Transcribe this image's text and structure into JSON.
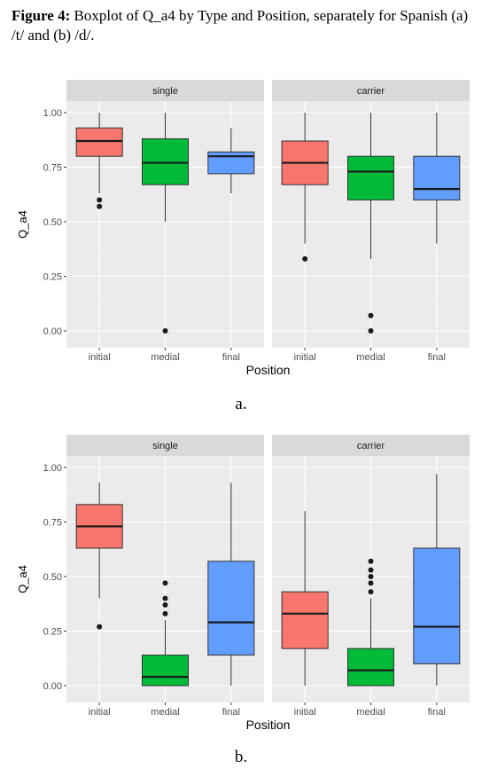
{
  "caption": {
    "label": "Figure 4:",
    "text": " Boxplot of Q_a4 by Type and Position, separately for Spanish (a) /t/ and (b) /d/."
  },
  "sublabels": [
    "a.",
    "b."
  ],
  "colors": {
    "initial": "#f8766d",
    "medial": "#00ba38",
    "final": "#619cff",
    "panel_bg": "#ebebeb",
    "strip_bg": "#d9d9d9",
    "grid_major": "#ffffff"
  },
  "chart_data": [
    {
      "type": "boxplot",
      "id": "a",
      "xlabel": "Position",
      "ylabel": "Q_a4",
      "ylim": [
        0,
        1
      ],
      "yticks": [
        "0.00",
        "0.25",
        "0.50",
        "0.75",
        "1.00"
      ],
      "categories": [
        "initial",
        "medial",
        "final"
      ],
      "legend": "none",
      "grid": true,
      "facets": [
        {
          "name": "single",
          "boxes": [
            {
              "category": "initial",
              "min": 0.63,
              "q1": 0.8,
              "median": 0.87,
              "q3": 0.93,
              "max": 1.0,
              "outliers": [
                0.6,
                0.57
              ]
            },
            {
              "category": "medial",
              "min": 0.5,
              "q1": 0.67,
              "median": 0.77,
              "q3": 0.88,
              "max": 1.0,
              "outliers": [
                0.0
              ]
            },
            {
              "category": "final",
              "min": 0.63,
              "q1": 0.72,
              "median": 0.8,
              "q3": 0.82,
              "max": 0.93,
              "outliers": []
            }
          ]
        },
        {
          "name": "carrier",
          "boxes": [
            {
              "category": "initial",
              "min": 0.4,
              "q1": 0.67,
              "median": 0.77,
              "q3": 0.87,
              "max": 1.0,
              "outliers": [
                0.33
              ]
            },
            {
              "category": "medial",
              "min": 0.33,
              "q1": 0.6,
              "median": 0.73,
              "q3": 0.8,
              "max": 1.0,
              "outliers": [
                0.07,
                0.0
              ]
            },
            {
              "category": "final",
              "min": 0.4,
              "q1": 0.6,
              "median": 0.65,
              "q3": 0.8,
              "max": 1.0,
              "outliers": []
            }
          ]
        }
      ]
    },
    {
      "type": "boxplot",
      "id": "b",
      "xlabel": "Position",
      "ylabel": "Q_a4",
      "ylim": [
        0,
        1
      ],
      "yticks": [
        "0.00",
        "0.25",
        "0.50",
        "0.75",
        "1.00"
      ],
      "categories": [
        "initial",
        "medial",
        "final"
      ],
      "legend": "none",
      "grid": true,
      "facets": [
        {
          "name": "single",
          "boxes": [
            {
              "category": "initial",
              "min": 0.4,
              "q1": 0.63,
              "median": 0.73,
              "q3": 0.83,
              "max": 0.93,
              "outliers": [
                0.27
              ]
            },
            {
              "category": "medial",
              "min": 0.0,
              "q1": 0.0,
              "median": 0.04,
              "q3": 0.14,
              "max": 0.3,
              "outliers": [
                0.33,
                0.37,
                0.4,
                0.47
              ]
            },
            {
              "category": "final",
              "min": 0.0,
              "q1": 0.14,
              "median": 0.29,
              "q3": 0.57,
              "max": 0.93,
              "outliers": []
            }
          ]
        },
        {
          "name": "carrier",
          "boxes": [
            {
              "category": "initial",
              "min": 0.0,
              "q1": 0.17,
              "median": 0.33,
              "q3": 0.43,
              "max": 0.8,
              "outliers": []
            },
            {
              "category": "medial",
              "min": 0.0,
              "q1": 0.0,
              "median": 0.07,
              "q3": 0.17,
              "max": 0.4,
              "outliers": [
                0.43,
                0.47,
                0.5,
                0.53,
                0.57
              ]
            },
            {
              "category": "final",
              "min": 0.0,
              "q1": 0.1,
              "median": 0.27,
              "q3": 0.63,
              "max": 0.97,
              "outliers": []
            }
          ]
        }
      ]
    }
  ]
}
